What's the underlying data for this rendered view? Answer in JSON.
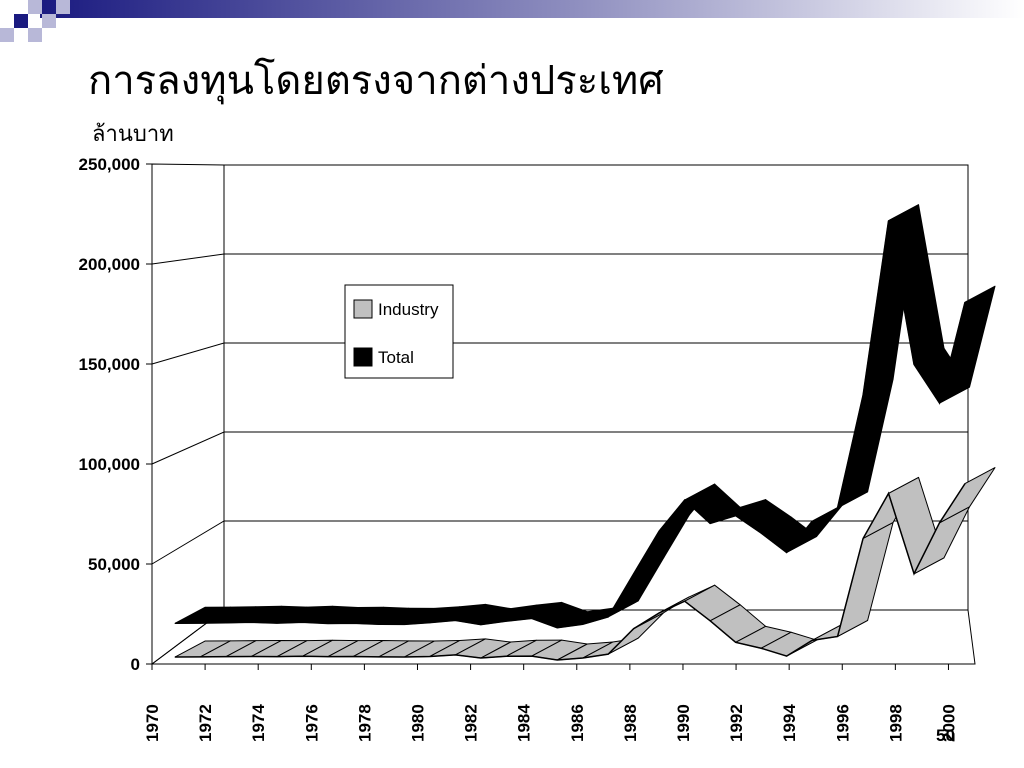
{
  "slide": {
    "title": "การลงทุนโดยตรงจากต่างประเทศ",
    "unit_label": "ล้านบาท"
  },
  "chart_data": {
    "type": "area",
    "style": "3d-ribbon",
    "ylim": [
      0,
      250000
    ],
    "yticks": [
      "0",
      "50,000",
      "100,000",
      "150,000",
      "200,000",
      "250,000"
    ],
    "x": [
      1970,
      1971,
      1972,
      1973,
      1974,
      1975,
      1976,
      1977,
      1978,
      1979,
      1980,
      1981,
      1982,
      1983,
      1984,
      1985,
      1986,
      1987,
      1988,
      1989,
      1990,
      1991,
      1992,
      1993,
      1994,
      1995,
      1996,
      1997,
      1998,
      1999,
      2000,
      2001
    ],
    "xticks": [
      "1970",
      "1972",
      "1974",
      "1976",
      "1978",
      "1980",
      "1982",
      "1984",
      "1986",
      "1988",
      "1990",
      "1992",
      "1994",
      "1996",
      "1998",
      "2000"
    ],
    "extra_label": "50",
    "grid": true,
    "legend": "upper-left",
    "series": [
      {
        "name": "Industry",
        "color": "#c0c0c0",
        "values": [
          1500,
          1600,
          1700,
          1800,
          1700,
          1900,
          1700,
          1800,
          1600,
          1500,
          1800,
          2600,
          1000,
          1900,
          2000,
          0,
          1000,
          3000,
          16000,
          24000,
          30000,
          20000,
          9000,
          6000,
          2000,
          10000,
          12000,
          62000,
          85000,
          44000,
          70000,
          90000
        ]
      },
      {
        "name": "Total",
        "color": "#000000",
        "values": [
          4500,
          4600,
          4800,
          5000,
          4600,
          5000,
          4400,
          4500,
          4000,
          3900,
          4800,
          6000,
          3800,
          5600,
          7000,
          2200,
          4000,
          7800,
          30000,
          52000,
          68000,
          56000,
          60000,
          51000,
          41000,
          57000,
          64000,
          122000,
          212000,
          138000,
          118000,
          170000
        ]
      }
    ]
  }
}
